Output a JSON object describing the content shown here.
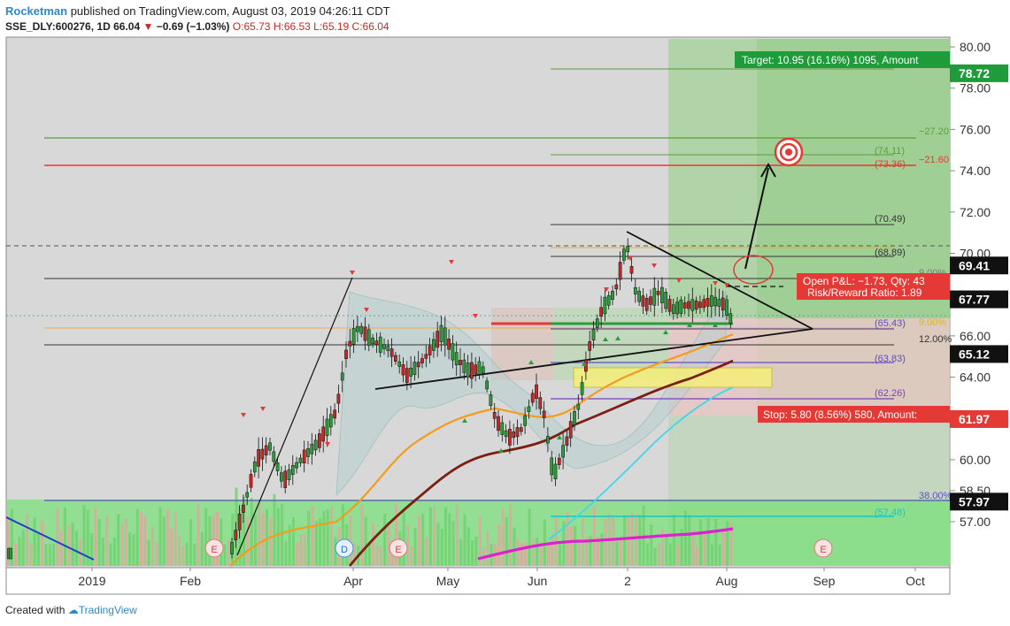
{
  "header": {
    "author": "Rocketman",
    "published": " published on TradingView.com, August 03, 2019 04:26:11 CDT",
    "symbol": "SSE_DLY:600276, 1D",
    "last": "66.04",
    "change": "−0.69 (−1.03%)",
    "ohlc": "O:65.73 H:66.53 L:65.19 C:66.04"
  },
  "footer": {
    "created_with": "Created with",
    "brand": "TradingView"
  },
  "chart_data": {
    "type": "candlestick",
    "price_axis": {
      "ticks": [
        "80.00",
        "78.00",
        "76.00",
        "74.00",
        "72.00",
        "70.00",
        "68.00",
        "66.00",
        "64.00",
        "62.00",
        "60.00",
        "58.50",
        "57.00"
      ]
    },
    "time_axis": {
      "ticks": [
        "2019",
        "Feb",
        "Apr",
        "May",
        "Jun",
        "2",
        "Aug",
        "Sep",
        "Oct"
      ]
    },
    "price_tags": [
      {
        "value": "78.72",
        "color": "#1e9b3a"
      },
      {
        "value": "69.41",
        "color": "#111111"
      },
      {
        "value": "67.77",
        "color": "#111111"
      },
      {
        "value": "65.12",
        "color": "#111111"
      },
      {
        "value": "61.97",
        "color": "#e53935"
      },
      {
        "value": "57.97",
        "color": "#111111"
      }
    ],
    "fib_levels": [
      {
        "label": "(74.11)",
        "color": "#5a9e3e"
      },
      {
        "label": "(73.36)",
        "color": "#e53935"
      },
      {
        "label": "(70.49)",
        "color": "#333333"
      },
      {
        "label": "(68.89)",
        "color": "#333333"
      },
      {
        "label": "(65.43)",
        "color": "#5c4fbf"
      },
      {
        "label": "(63.83)",
        "color": "#5c4fbf"
      },
      {
        "label": "(62.26)",
        "color": "#7b3fb5"
      },
      {
        "label": "(57.48)",
        "color": "#18c7c7"
      }
    ],
    "pct_labels": [
      {
        "label": "−27.20",
        "color": "#5a9e3e"
      },
      {
        "label": "−21.60",
        "color": "#e53935"
      },
      {
        "label": "9.00%",
        "color": "#777777"
      },
      {
        "label": "9.00%",
        "color": "#d9b52c"
      },
      {
        "label": "12.00%",
        "color": "#333333"
      },
      {
        "label": "38.00%",
        "color": "#5c4fbf"
      }
    ],
    "position_boxes": {
      "target": "Target: 10.95 (16.16%) 1095, Amount",
      "open_pnl": "Open P&L: −1.73, Qty: 43",
      "risk_reward": "Risk/Reward Ratio: 1.89",
      "stop": "Stop: 5.80 (8.56%) 580, Amount:"
    },
    "event_markers": [
      "E",
      "D",
      "E",
      "E"
    ]
  }
}
